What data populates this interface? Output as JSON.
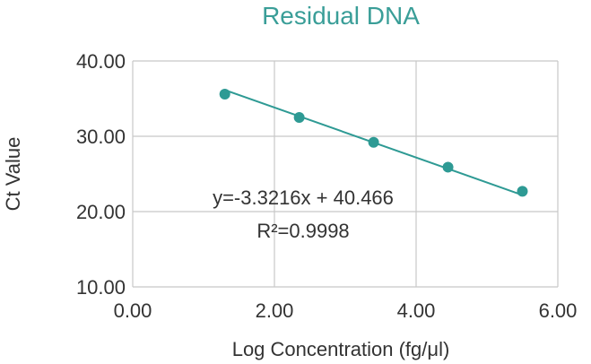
{
  "chart_data": {
    "type": "scatter",
    "title": "Residual DNA",
    "xlabel": "Log Concentration (fg/μl)",
    "ylabel": "Ct Value",
    "xlim": [
      0,
      6
    ],
    "ylim": [
      10,
      40
    ],
    "x_ticks": [
      0,
      2,
      4,
      6
    ],
    "y_ticks": [
      10,
      20,
      30,
      40
    ],
    "x_tick_labels": [
      "0.00",
      "2.00",
      "4.00",
      "6.00"
    ],
    "y_tick_labels": [
      "10.00",
      "20.00",
      "30.00",
      "40.00"
    ],
    "grid": true,
    "series": [
      {
        "x": [
          1.3,
          2.35,
          3.4,
          4.45,
          5.5
        ],
        "y": [
          35.6,
          32.5,
          29.2,
          25.9,
          22.7
        ]
      }
    ],
    "trendline": {
      "slope": -3.3216,
      "intercept": 40.466
    },
    "annotations": {
      "equation": "y=-3.3216x + 40.466",
      "r_squared": "R²=0.9998"
    },
    "colors": {
      "series": "#2e9a94",
      "title": "#3a9e98",
      "grid": "#c8c8c8",
      "axis_text": "#333333"
    }
  }
}
